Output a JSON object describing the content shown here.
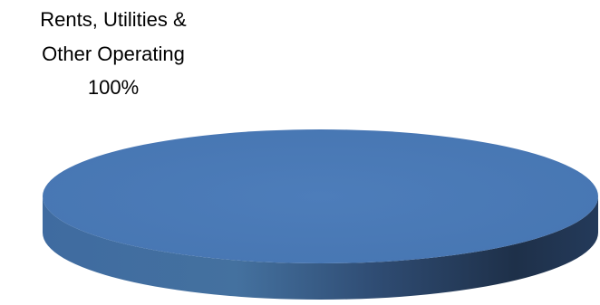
{
  "chart_data": {
    "type": "pie",
    "style": "3d",
    "title": "",
    "slices": [
      {
        "label_lines": [
          "Rents, Utilities &",
          "Other Operating",
          "100%"
        ],
        "category": "Rents, Utilities & Other Operating",
        "percent": 100,
        "value": 100,
        "color": "#4a7ab5"
      }
    ],
    "legend": "none",
    "side_gradient": [
      "#3f6b9e",
      "#24395a",
      "#1c2c45"
    ]
  }
}
